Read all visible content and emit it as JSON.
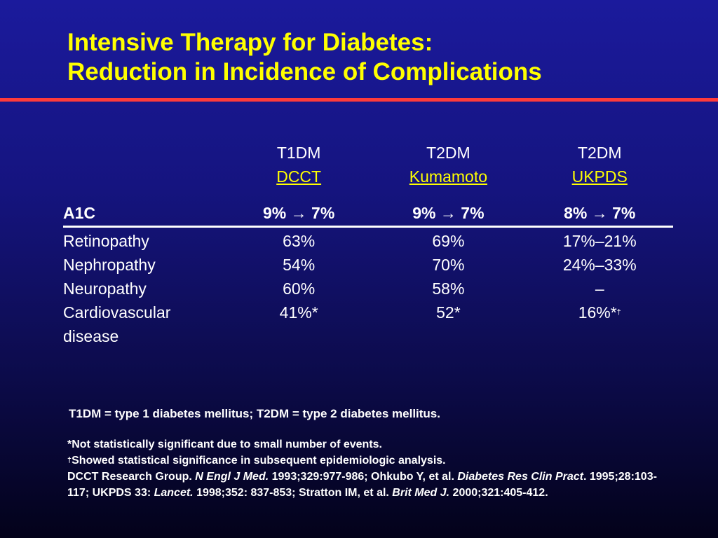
{
  "slide": {
    "title_line1": "Intensive Therapy for Diabetes:",
    "title_line2": "Reduction in Incidence of Complications"
  },
  "table": {
    "columns": [
      {
        "type": "T1DM",
        "study": "DCCT",
        "a1c": "9% → 7%"
      },
      {
        "type": "T2DM",
        "study": "Kumamoto",
        "a1c": "9% → 7%"
      },
      {
        "type": "T2DM",
        "study": "UKPDS",
        "a1c": "8% → 7%"
      }
    ],
    "a1c_label": "A1C",
    "rows": [
      {
        "label": "Retinopathy",
        "values": [
          "63%",
          "69%",
          "17%–21%"
        ]
      },
      {
        "label": "Nephropathy",
        "values": [
          "54%",
          "70%",
          "24%–33%"
        ]
      },
      {
        "label": "Neuropathy",
        "values": [
          "60%",
          "58%",
          "–"
        ]
      },
      {
        "label_line1": "Cardiovascular",
        "label_line2": "disease",
        "values": [
          "41%*",
          "52*",
          "16%*"
        ],
        "dagger": "†"
      }
    ]
  },
  "abbreviations": "T1DM = type 1 diabetes mellitus; T2DM = type 2 diabetes mellitus.",
  "footnotes": {
    "not_significant": "*Not statistically significant due to small number of events.",
    "dagger_mark": "†",
    "showed_significance": "Showed statistical significance in subsequent epidemiologic analysis.",
    "ref_a": "DCCT Research Group. ",
    "ref_a_journal": "N Engl J Med.",
    "ref_b": " 1993;329:977-986; Ohkubo Y, et al. ",
    "ref_b_journal": "Diabetes Res Clin Pract",
    "ref_c": ". 1995;28:103-117; UKPDS 33: ",
    "ref_c_journal": "Lancet.",
    "ref_d": " 1998;352: 837-853; Stratton IM, et al. ",
    "ref_d_journal": "Brit Med J.",
    "ref_e": " 2000;321:405-412."
  },
  "colors": {
    "background_top": "#1b1a9c",
    "background_bottom": "#03021a",
    "title": "#ffff00",
    "rule": "#ff3b3b",
    "text": "#ffffff"
  }
}
